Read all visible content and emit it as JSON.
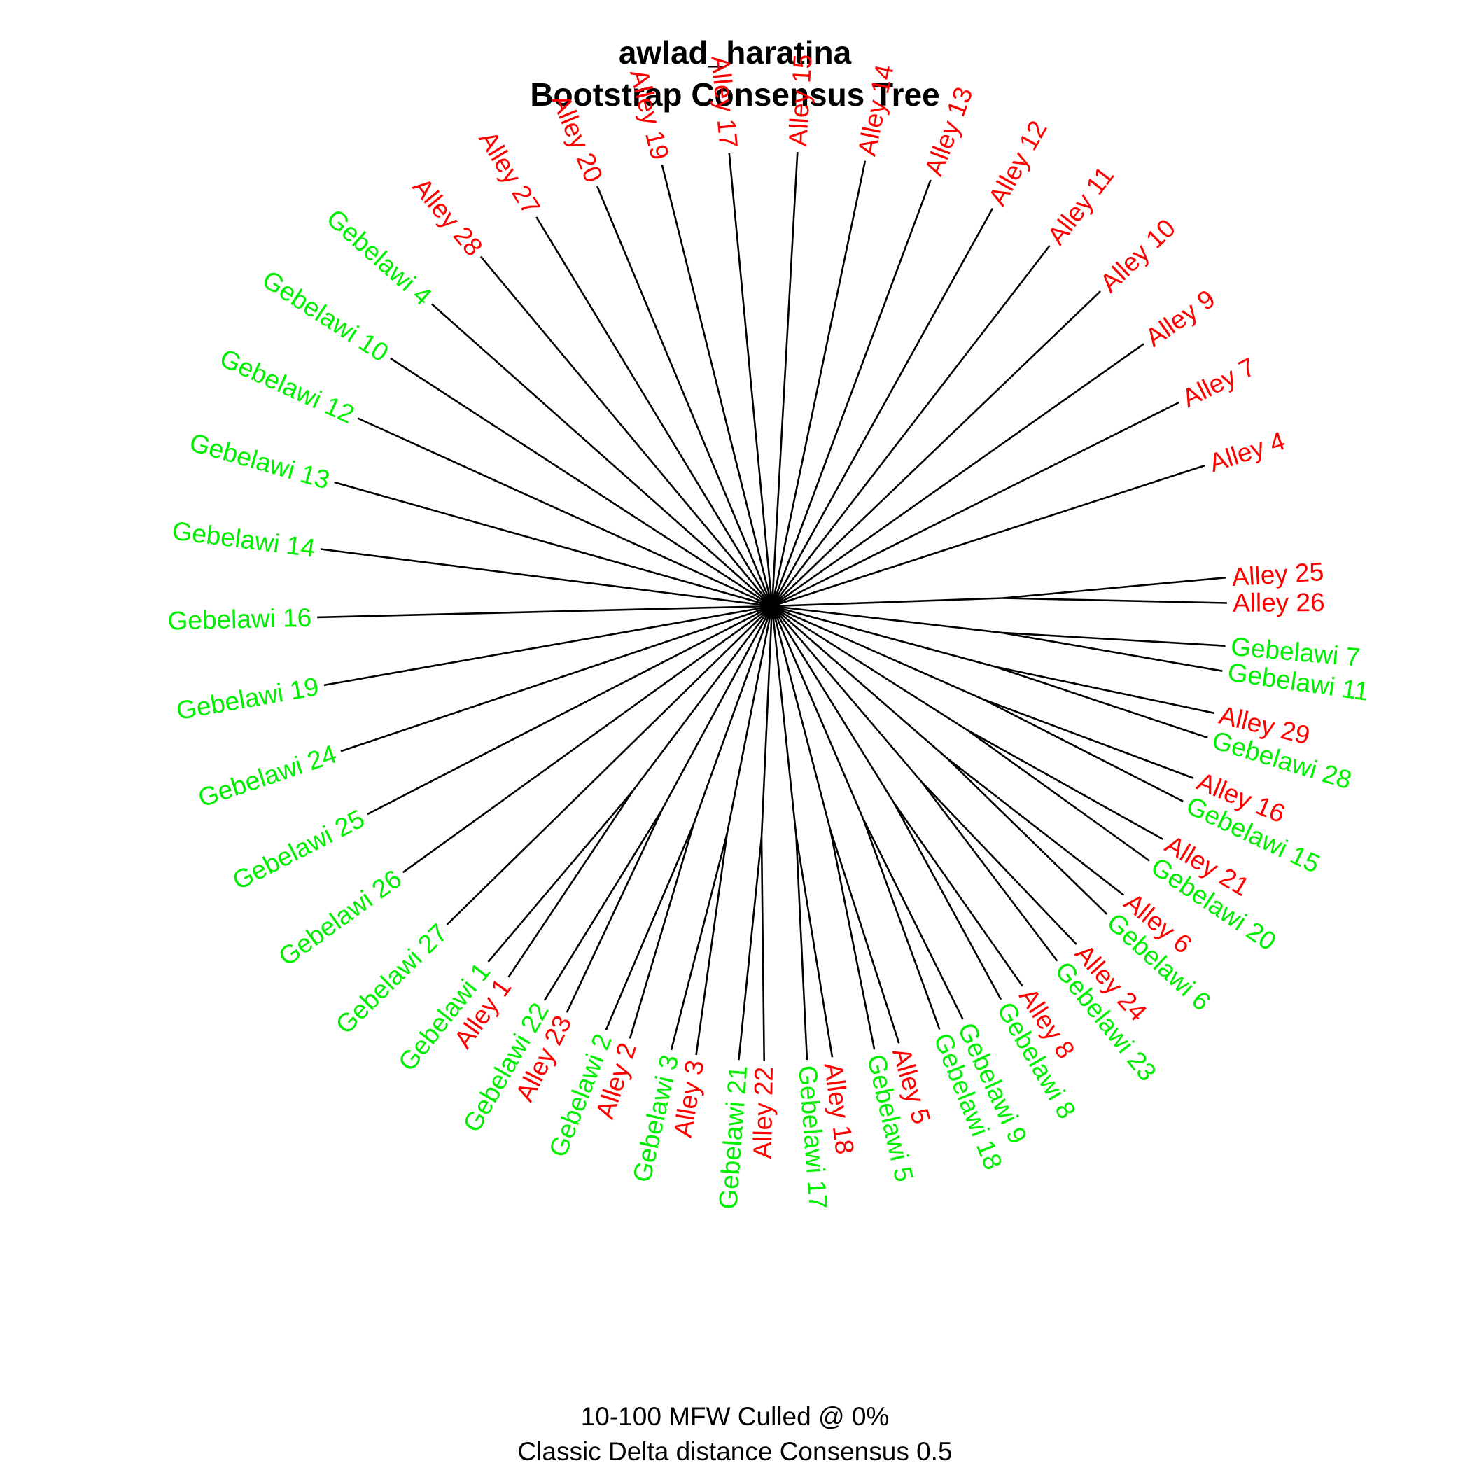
{
  "header": {
    "title_line1": "awlad_haratina",
    "title_line2": "Bootstrap Consensus Tree"
  },
  "footer": {
    "line1": "10-100 MFW  Culled @ 0%",
    "line2": "Classic Delta distance Consensus 0.5"
  },
  "colors": {
    "Alley": "#ff0000",
    "Gebelawi": "#00ee00",
    "branch": "#000000"
  },
  "tree": {
    "type": "unrooted-fan",
    "groups": [
      {
        "tips": [
          "Alley 26",
          "Alley 25"
        ]
      },
      {
        "tips": [
          "Gebelawi 11",
          "Gebelawi 7"
        ]
      },
      {
        "tips": [
          "Gebelawi 28",
          "Alley 29"
        ]
      },
      {
        "tips": [
          "Gebelawi 15",
          "Alley 16"
        ]
      },
      {
        "tips": [
          "Gebelawi 20",
          "Alley 21"
        ]
      },
      {
        "tips": [
          "Gebelawi 6",
          "Alley 6"
        ]
      },
      {
        "tips": [
          "Gebelawi 23",
          "Alley 24"
        ]
      },
      {
        "tips": [
          "Gebelawi 8",
          "Alley 8"
        ]
      },
      {
        "tips": [
          "Gebelawi 18",
          "Gebelawi 9"
        ]
      },
      {
        "tips": [
          "Gebelawi 5",
          "Alley 5"
        ]
      },
      {
        "tips": [
          "Gebelawi 17",
          "Alley 18"
        ]
      },
      {
        "tips": [
          "Gebelawi 21",
          "Alley 22"
        ]
      },
      {
        "tips": [
          "Gebelawi 3",
          "Alley 3"
        ]
      },
      {
        "tips": [
          "Gebelawi 2",
          "Alley 2"
        ]
      },
      {
        "tips": [
          "Gebelawi 22",
          "Alley 23"
        ]
      },
      {
        "tips": [
          "Gebelawi 1",
          "Alley 1"
        ]
      },
      {
        "tips": [
          "Gebelawi 27"
        ]
      },
      {
        "tips": [
          "Gebelawi 26"
        ]
      },
      {
        "tips": [
          "Gebelawi 25"
        ]
      },
      {
        "tips": [
          "Gebelawi 24"
        ]
      },
      {
        "tips": [
          "Gebelawi 19"
        ]
      },
      {
        "tips": [
          "Gebelawi 16"
        ]
      },
      {
        "tips": [
          "Gebelawi 14"
        ]
      },
      {
        "tips": [
          "Gebelawi 13"
        ]
      },
      {
        "tips": [
          "Gebelawi 12"
        ]
      },
      {
        "tips": [
          "Gebelawi 10"
        ]
      },
      {
        "tips": [
          "Gebelawi 4"
        ]
      },
      {
        "tips": [
          "Alley 28"
        ]
      },
      {
        "tips": [
          "Alley 27"
        ]
      },
      {
        "tips": [
          "Alley 20"
        ]
      },
      {
        "tips": [
          "Alley 19"
        ]
      },
      {
        "tips": [
          "Alley 17"
        ]
      },
      {
        "tips": [
          "Alley 15"
        ]
      },
      {
        "tips": [
          "Alley 14"
        ]
      },
      {
        "tips": [
          "Alley 13"
        ]
      },
      {
        "tips": [
          "Alley 12"
        ]
      },
      {
        "tips": [
          "Alley 11"
        ]
      },
      {
        "tips": [
          "Alley 10"
        ]
      },
      {
        "tips": [
          "Alley 9"
        ]
      },
      {
        "tips": [
          "Alley 7"
        ]
      },
      {
        "tips": [
          "Alley 4"
        ]
      }
    ]
  }
}
